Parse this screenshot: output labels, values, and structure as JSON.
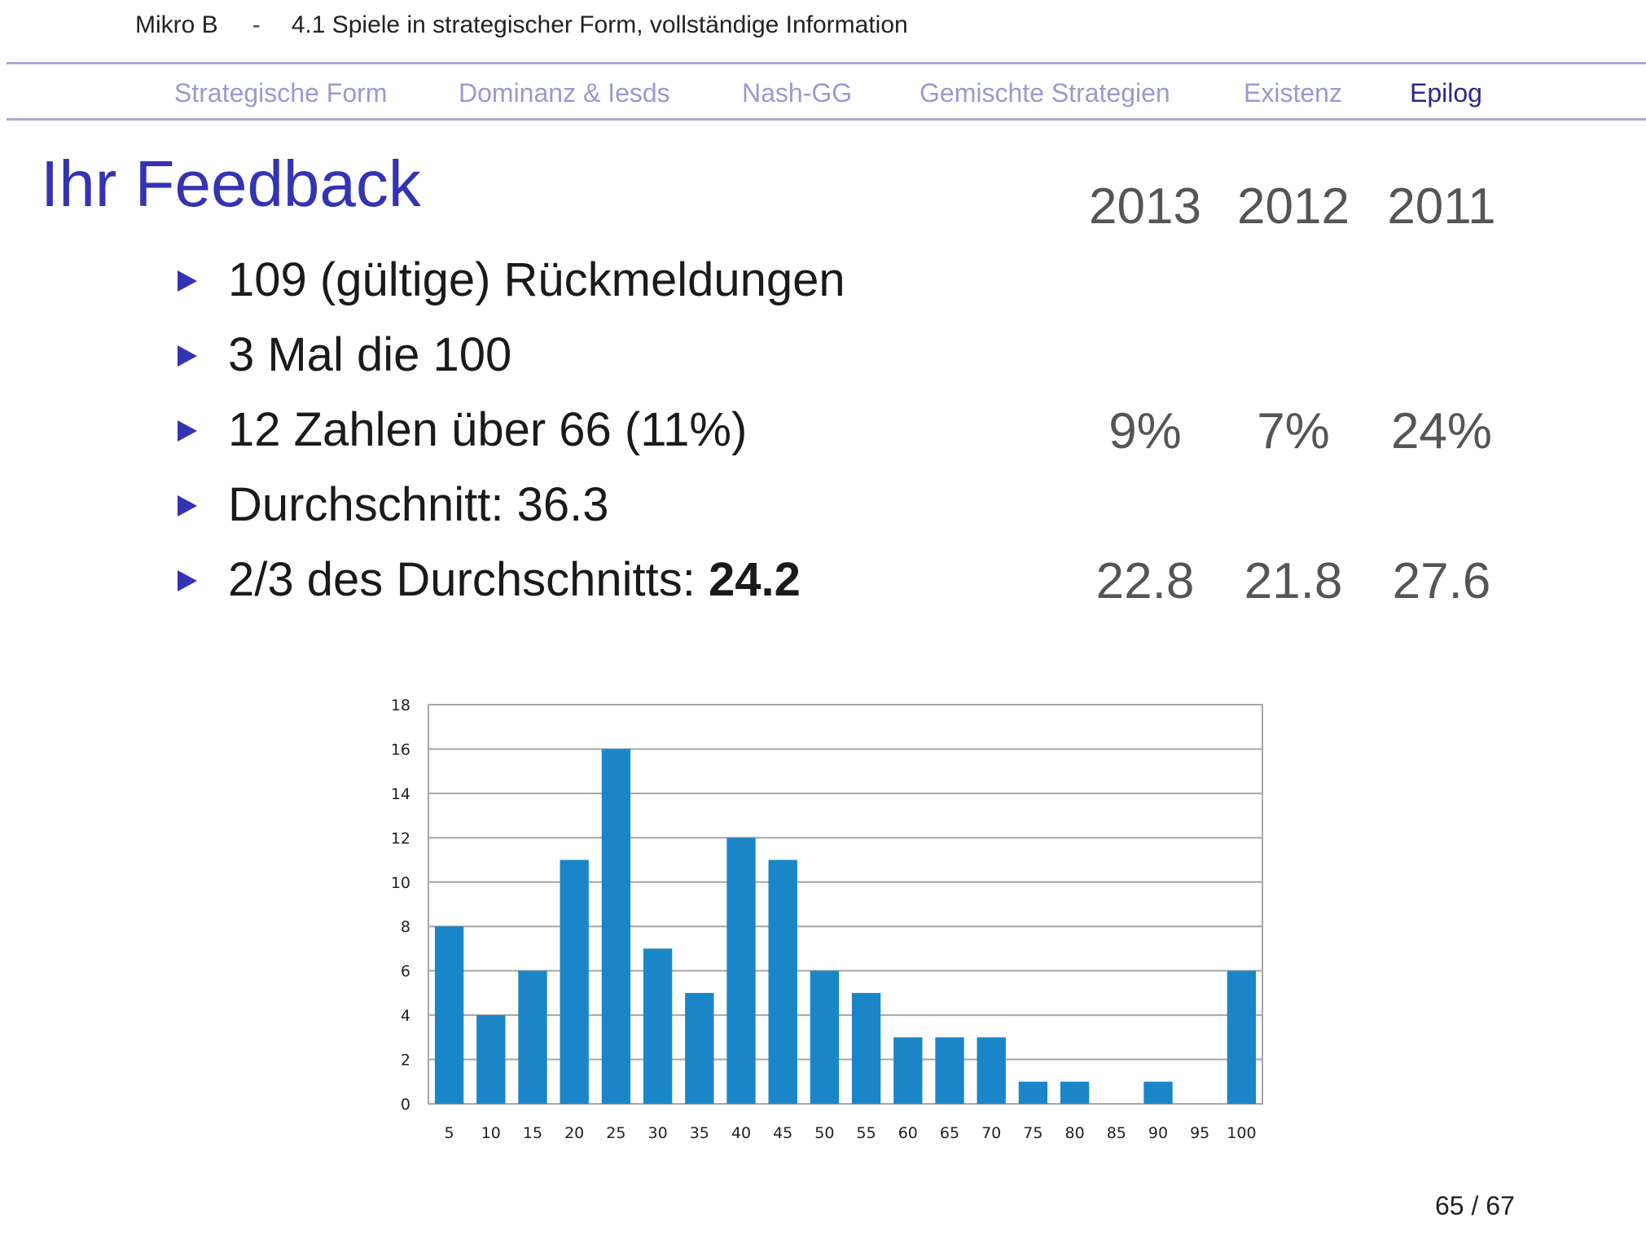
{
  "header": {
    "course": "Mikro B",
    "separator": "-",
    "section": "4.1 Spiele in strategischer Form, vollständige Information"
  },
  "nav": {
    "items": [
      {
        "label": "Strategische Form",
        "active": false
      },
      {
        "label": "Dominanz & Iesds",
        "active": false
      },
      {
        "label": "Nash-GG",
        "active": false
      },
      {
        "label": "Gemischte Strategien",
        "active": false
      },
      {
        "label": "Existenz",
        "active": false
      },
      {
        "label": "Epilog",
        "active": true
      }
    ]
  },
  "slide": {
    "title": "Ihr Feedback",
    "years": [
      "2013",
      "2012",
      "2011"
    ],
    "bullets": [
      {
        "text": "109 (gültige) Rückmeldungen"
      },
      {
        "text": "3 Mal die 100"
      },
      {
        "text": "12 Zahlen über 66 (11%)",
        "compare": [
          "9%",
          "7%",
          "24%"
        ]
      },
      {
        "text": "Durchschnitt: 36.3"
      },
      {
        "text": "2/3 des Durchschnitts: ",
        "bold": "24.2",
        "compare": [
          "22.8",
          "21.8",
          "27.6"
        ]
      }
    ]
  },
  "chart_data": {
    "type": "bar",
    "categories": [
      "5",
      "10",
      "15",
      "20",
      "25",
      "30",
      "35",
      "40",
      "45",
      "50",
      "55",
      "60",
      "65",
      "70",
      "75",
      "80",
      "85",
      "90",
      "95",
      "100"
    ],
    "values": [
      8,
      4,
      6,
      11,
      16,
      7,
      5,
      12,
      11,
      6,
      5,
      3,
      3,
      3,
      1,
      1,
      0,
      1,
      0,
      6
    ],
    "ylim": [
      0,
      18
    ],
    "yticks": [
      "0",
      "2",
      "4",
      "6",
      "8",
      "10",
      "12",
      "14",
      "16",
      "18"
    ],
    "grid": true,
    "bar_color": "#1a86c8",
    "grid_color": "#a6a6a6"
  },
  "footer": {
    "page": "65 / 67"
  },
  "colors": {
    "title": "#3333b3",
    "nav_inactive": "#9a9acf",
    "nav_active": "#2a2a8c",
    "rule": "#aaaadd"
  }
}
